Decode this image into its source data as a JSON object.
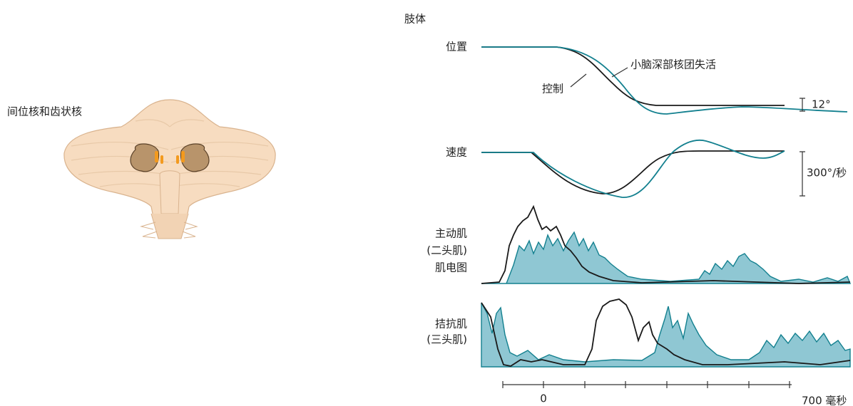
{
  "figure": {
    "nuclei_label": "间位核和齿状核",
    "limb": "肢体",
    "position": {
      "label": "位置",
      "scale": "12°"
    },
    "inactivation": "小脑深部核团失活",
    "control": "控制",
    "velocity": {
      "label": "速度",
      "scale": "300°/秒"
    },
    "agonist": {
      "lines": [
        "主动肌",
        "(二头肌)",
        "肌电图"
      ]
    },
    "antagonist": {
      "lines": [
        "拮抗肌",
        "(三头肌)"
      ]
    },
    "time_axis": {
      "start": "0",
      "end": "700 毫秒"
    }
  }
}
